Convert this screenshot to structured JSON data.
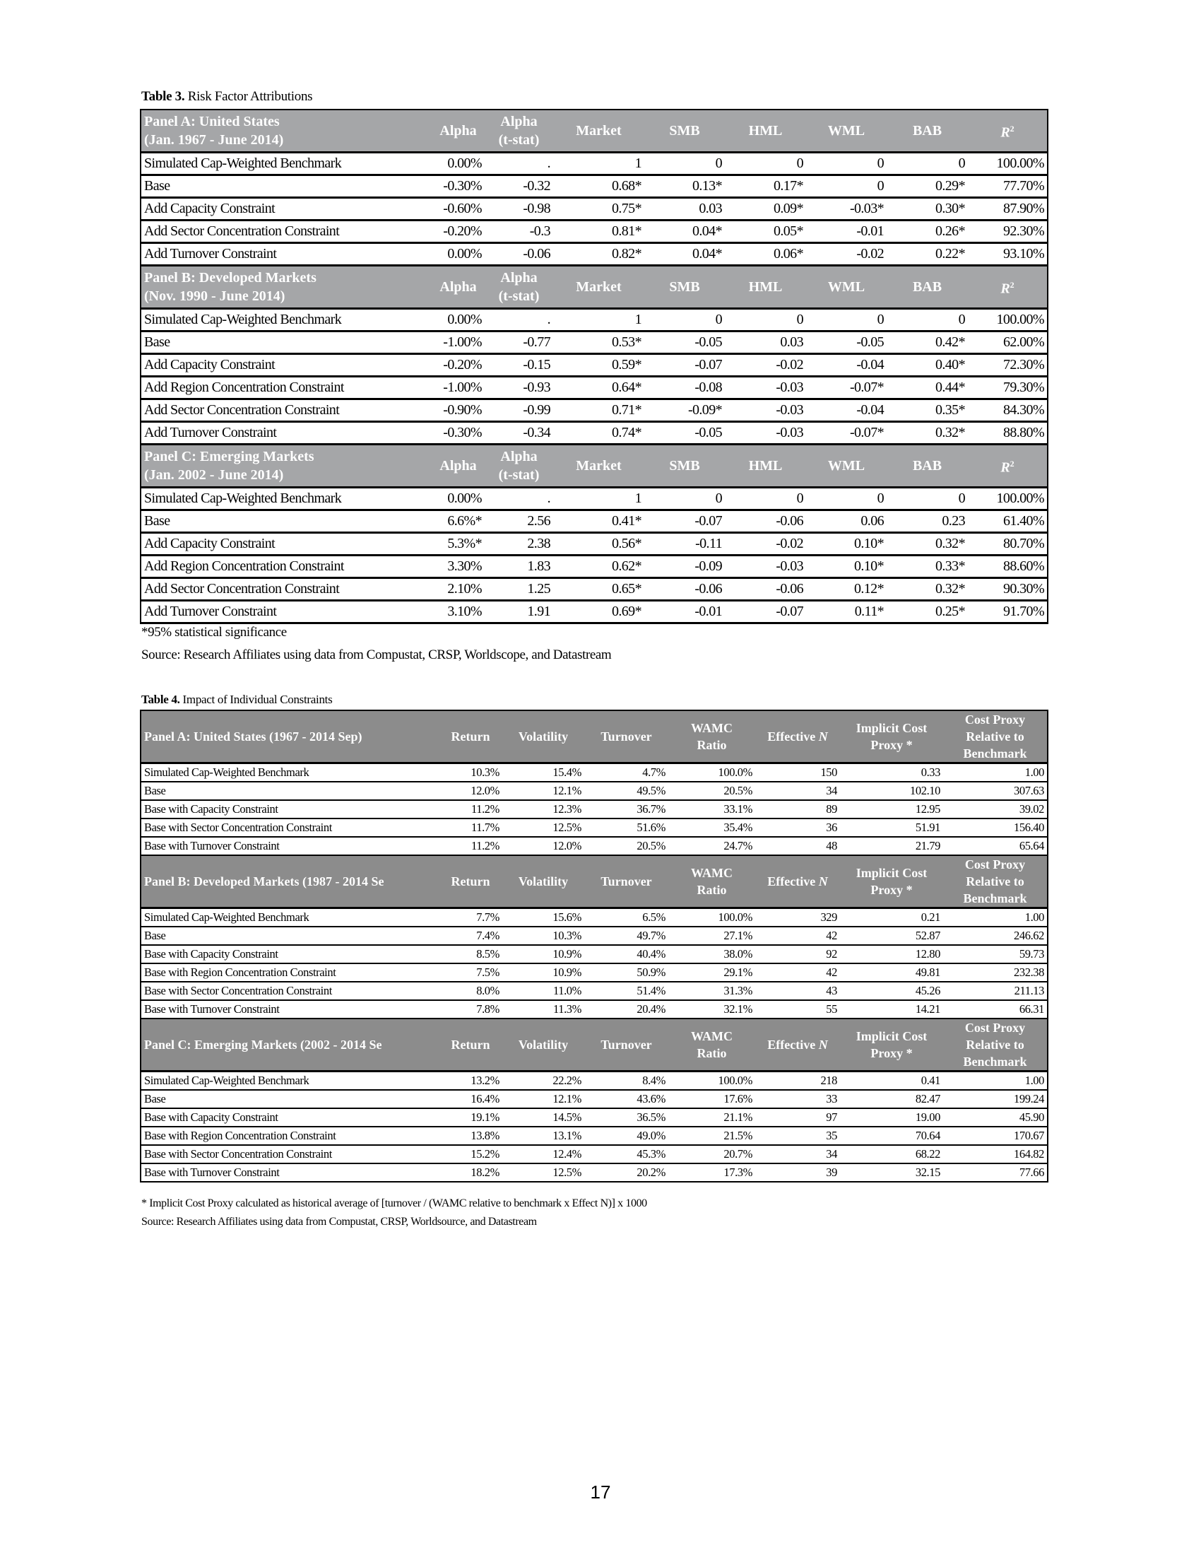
{
  "table3": {
    "label_bold": "Table 3.",
    "label_rest": " Risk Factor Attributions",
    "columns": [
      "Alpha",
      "Alpha (t-stat)",
      "Market",
      "SMB",
      "HML",
      "WML",
      "BAB",
      "R"
    ],
    "col_alpha_tstat_top": "Alpha",
    "col_alpha_tstat_bottom": "(t-stat)",
    "r2_sup": "2",
    "panels": [
      {
        "title_line1": "Panel A: United States",
        "title_line2": "(Jan. 1967 - June 2014)",
        "rows": [
          [
            "Simulated Cap-Weighted Benchmark",
            "0.00%",
            ".",
            "1",
            "0",
            "0",
            "0",
            "0",
            "100.00%"
          ],
          [
            "Base",
            "-0.30%",
            "-0.32",
            "0.68*",
            "0.13*",
            "0.17*",
            "0",
            "0.29*",
            "77.70%"
          ],
          [
            "Add Capacity Constraint",
            "-0.60%",
            "-0.98",
            "0.75*",
            "0.03",
            "0.09*",
            "-0.03*",
            "0.30*",
            "87.90%"
          ],
          [
            "Add Sector Concentration Constraint",
            "-0.20%",
            "-0.3",
            "0.81*",
            "0.04*",
            "0.05*",
            "-0.01",
            "0.26*",
            "92.30%"
          ],
          [
            "Add Turnover Constraint",
            "0.00%",
            "-0.06",
            "0.82*",
            "0.04*",
            "0.06*",
            "-0.02",
            "0.22*",
            "93.10%"
          ]
        ]
      },
      {
        "title_line1": "Panel B: Developed Markets",
        "title_line2": "(Nov. 1990 - June 2014)",
        "rows": [
          [
            "Simulated Cap-Weighted Benchmark",
            "0.00%",
            ".",
            "1",
            "0",
            "0",
            "0",
            "0",
            "100.00%"
          ],
          [
            "Base",
            "-1.00%",
            "-0.77",
            "0.53*",
            "-0.05",
            "0.03",
            "-0.05",
            "0.42*",
            "62.00%"
          ],
          [
            "Add Capacity Constraint",
            "-0.20%",
            "-0.15",
            "0.59*",
            "-0.07",
            "-0.02",
            "-0.04",
            "0.40*",
            "72.30%"
          ],
          [
            "Add Region Concentration Constraint",
            "-1.00%",
            "-0.93",
            "0.64*",
            "-0.08",
            "-0.03",
            "-0.07*",
            "0.44*",
            "79.30%"
          ],
          [
            "Add Sector Concentration Constraint",
            "-0.90%",
            "-0.99",
            "0.71*",
            "-0.09*",
            "-0.03",
            "-0.04",
            "0.35*",
            "84.30%"
          ],
          [
            "Add Turnover Constraint",
            "-0.30%",
            "-0.34",
            "0.74*",
            "-0.05",
            "-0.03",
            "-0.07*",
            "0.32*",
            "88.80%"
          ]
        ]
      },
      {
        "title_line1": "Panel C: Emerging Markets",
        "title_line2": "(Jan. 2002 - June 2014)",
        "rows": [
          [
            "Simulated Cap-Weighted Benchmark",
            "0.00%",
            ".",
            "1",
            "0",
            "0",
            "0",
            "0",
            "100.00%"
          ],
          [
            "Base",
            "6.6%*",
            "2.56",
            "0.41*",
            "-0.07",
            "-0.06",
            "0.06",
            "0.23",
            "61.40%"
          ],
          [
            "Add Capacity Constraint",
            "5.3%*",
            "2.38",
            "0.56*",
            "-0.11",
            "-0.02",
            "0.10*",
            "0.32*",
            "80.70%"
          ],
          [
            "Add Region Concentration Constraint",
            "3.30%",
            "1.83",
            "0.62*",
            "-0.09",
            "-0.03",
            "0.10*",
            "0.33*",
            "88.60%"
          ],
          [
            "Add Sector Concentration Constraint",
            "2.10%",
            "1.25",
            "0.65*",
            "-0.06",
            "-0.06",
            "0.12*",
            "0.32*",
            "90.30%"
          ],
          [
            "Add Turnover Constraint",
            "3.10%",
            "1.91",
            "0.69*",
            "-0.01",
            "-0.07",
            "0.11*",
            "0.25*",
            "91.70%"
          ]
        ]
      }
    ],
    "footnote": "*95% statistical significance",
    "source": "Source: Research Affiliates using data from Compustat, CRSP, Worldscope, and Datastream"
  },
  "table4": {
    "label_bold": "Table 4.",
    "label_rest": " Impact of Individual Constraints",
    "columns": [
      [
        "Return"
      ],
      [
        "Volatility"
      ],
      [
        "Turnover"
      ],
      [
        "WAMC",
        "Ratio"
      ],
      [
        "Effective N"
      ],
      [
        "Implicit Cost",
        "Proxy *"
      ],
      [
        "Cost Proxy",
        "Relative to",
        "Benchmark"
      ]
    ],
    "panels": [
      {
        "title": "Panel A: United States (1967 - 2014 Sep)",
        "rows": [
          [
            "Simulated Cap-Weighted Benchmark",
            "10.3%",
            "15.4%",
            "4.7%",
            "100.0%",
            "150",
            "0.33",
            "1.00"
          ],
          [
            "Base",
            "12.0%",
            "12.1%",
            "49.5%",
            "20.5%",
            "34",
            "102.10",
            "307.63"
          ],
          [
            "Base with Capacity Constraint",
            "11.2%",
            "12.3%",
            "36.7%",
            "33.1%",
            "89",
            "12.95",
            "39.02"
          ],
          [
            "Base with Sector Concentration Constraint",
            "11.7%",
            "12.5%",
            "51.6%",
            "35.4%",
            "36",
            "51.91",
            "156.40"
          ],
          [
            "Base with Turnover Constraint",
            "11.2%",
            "12.0%",
            "20.5%",
            "24.7%",
            "48",
            "21.79",
            "65.64"
          ]
        ]
      },
      {
        "title": "Panel B: Developed Markets (1987 - 2014 Se",
        "rows": [
          [
            "Simulated Cap-Weighted Benchmark",
            "7.7%",
            "15.6%",
            "6.5%",
            "100.0%",
            "329",
            "0.21",
            "1.00"
          ],
          [
            "Base",
            "7.4%",
            "10.3%",
            "49.7%",
            "27.1%",
            "42",
            "52.87",
            "246.62"
          ],
          [
            "Base with Capacity Constraint",
            "8.5%",
            "10.9%",
            "40.4%",
            "38.0%",
            "92",
            "12.80",
            "59.73"
          ],
          [
            "Base with Region Concentration Constraint",
            "7.5%",
            "10.9%",
            "50.9%",
            "29.1%",
            "42",
            "49.81",
            "232.38"
          ],
          [
            "Base with Sector Concentration Constraint",
            "8.0%",
            "11.0%",
            "51.4%",
            "31.3%",
            "43",
            "45.26",
            "211.13"
          ],
          [
            "Base with Turnover Constraint",
            "7.8%",
            "11.3%",
            "20.4%",
            "32.1%",
            "55",
            "14.21",
            "66.31"
          ]
        ]
      },
      {
        "title": "Panel C: Emerging Markets (2002 - 2014 Se",
        "rows": [
          [
            "Simulated Cap-Weighted Benchmark",
            "13.2%",
            "22.2%",
            "8.4%",
            "100.0%",
            "218",
            "0.41",
            "1.00"
          ],
          [
            "Base",
            "16.4%",
            "12.1%",
            "43.6%",
            "17.6%",
            "33",
            "82.47",
            "199.24"
          ],
          [
            "Base with Capacity Constraint",
            "19.1%",
            "14.5%",
            "36.5%",
            "21.1%",
            "97",
            "19.00",
            "45.90"
          ],
          [
            "Base with Region Concentration Constraint",
            "13.8%",
            "13.1%",
            "49.0%",
            "21.5%",
            "35",
            "70.64",
            "170.67"
          ],
          [
            "Base with Sector Concentration Constraint",
            "15.2%",
            "12.4%",
            "45.3%",
            "20.7%",
            "34",
            "68.22",
            "164.82"
          ],
          [
            "Base with Turnover Constraint",
            "18.2%",
            "12.5%",
            "20.2%",
            "17.3%",
            "39",
            "32.15",
            "77.66"
          ]
        ]
      }
    ],
    "footnote": "* Implicit Cost Proxy calculated as historical average of [turnover / (WAMC relative to benchmark x Effect N)] x 1000",
    "source": "Source: Research Affiliates using data from Compustat, CRSP, Worldsource, and Datastream"
  },
  "page_number": "17"
}
